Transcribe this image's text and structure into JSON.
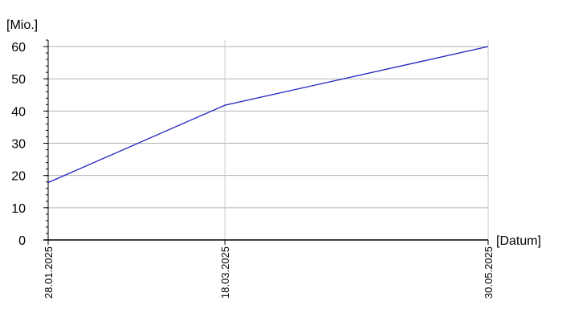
{
  "chart_data": {
    "type": "line",
    "x": [
      "2025-01-28",
      "2025-03-18",
      "2025-05-30"
    ],
    "x_tick_labels": [
      "28.01.2025",
      "18.03.2025",
      "30.05.2025"
    ],
    "series": [
      {
        "values": [
          17.8,
          41.8,
          60.0
        ],
        "color": "#1f1fbf"
      }
    ],
    "xlabel": "[Datum]",
    "ylabel": "[Mio.]",
    "ylim": [
      0,
      62
    ],
    "y_ticks": [
      0,
      10,
      20,
      30,
      40,
      50,
      60
    ],
    "grid": true
  }
}
